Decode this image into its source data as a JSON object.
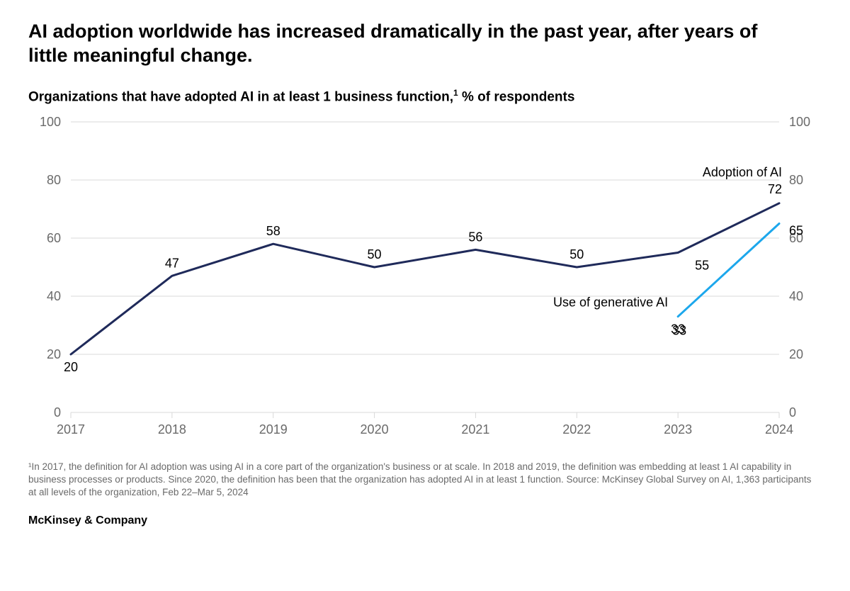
{
  "title": "AI adoption worldwide has increased dramatically in the past year, after years of little meaningful change.",
  "subtitle_main": "Organizations that have adopted AI in at least 1 business function,",
  "subtitle_sup": "1",
  "subtitle_tail": " % of respondents",
  "chart": {
    "type": "line",
    "background_color": "#ffffff",
    "gridline_color": "#d9d9d9",
    "axis_text_color": "#6a6a6a",
    "value_label_color": "#000000",
    "value_label_fontsize": 18,
    "axis_label_fontsize": 18,
    "series_label_fontsize": 18,
    "line_width": 3,
    "x_categories": [
      "2017",
      "2018",
      "2019",
      "2020",
      "2021",
      "2022",
      "2023",
      "2024"
    ],
    "y_min": 0,
    "y_max": 100,
    "y_tick_step": 20,
    "series": [
      {
        "name": "Adoption of AI",
        "color": "#1f2a5a",
        "label": "Adoption of AI",
        "end_label": "72",
        "values": [
          20,
          47,
          58,
          50,
          56,
          50,
          55,
          72
        ],
        "value_label_positions": [
          "below",
          "above",
          "above",
          "above",
          "above",
          "above",
          "below-right",
          "above"
        ],
        "series_label_anchor": "end-above"
      },
      {
        "name": "Use of generative AI",
        "color": "#1ca7ec",
        "label": "Use of generative AI",
        "end_label": "65",
        "values": [
          null,
          null,
          null,
          null,
          null,
          null,
          33,
          65
        ],
        "value_label_positions": [
          null,
          null,
          null,
          null,
          null,
          null,
          "below",
          "right"
        ],
        "series_label_anchor": "start-left"
      }
    ]
  },
  "footnote": "¹In 2017, the definition for AI adoption was using AI in a core part of the organization's business or at scale. In 2018 and 2019, the definition was embedding at least 1 AI capability in business processes or products. Since 2020, the definition has been that the organization has adopted AI in at least 1 function. Source: McKinsey Global Survey on AI, 1,363 participants at all levels of the organization, Feb 22–Mar 5, 2024",
  "brand": "McKinsey & Company"
}
